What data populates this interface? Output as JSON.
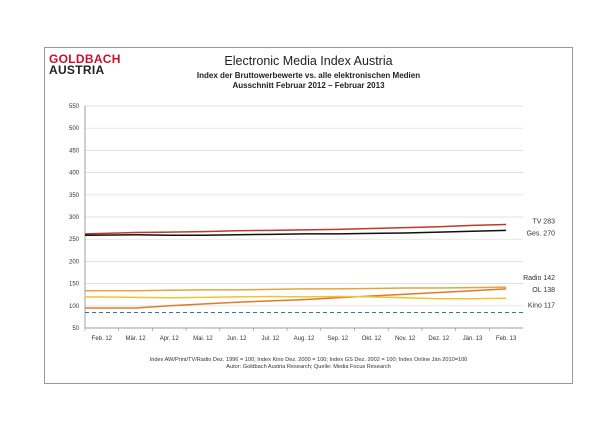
{
  "logo": {
    "line1": "GOLDBACH",
    "line2": "AUSTRIA"
  },
  "colors": {
    "brand": "#c8102e",
    "frame": "#9a9a9a"
  },
  "chart_data": {
    "type": "line",
    "title": "Electronic Media Index Austria",
    "subtitle": "Index der Bruttowerbewerte vs. alle elektronischen Medien",
    "subtitle2": "Ausschnitt Februar 2012 –  Februar 2013",
    "xlabel": "",
    "ylabel": "",
    "ylim": [
      50,
      550
    ],
    "yticks": [
      50,
      100,
      150,
      200,
      250,
      300,
      350,
      400,
      450,
      500,
      550
    ],
    "categories": [
      "Feb. 12",
      "Mär. 12",
      "Apr. 12",
      "Mai. 12",
      "Jun. 12",
      "Jul. 12",
      "Aug. 12",
      "Sep. 12",
      "Okt. 12",
      "Nov. 12",
      "Dez. 12",
      "Jän. 13",
      "Feb. 13"
    ],
    "grid": true,
    "series": [
      {
        "name": "TV",
        "label": "TV  283",
        "color": "#c0392b",
        "values": [
          262,
          265,
          266,
          267,
          269,
          270,
          271,
          272,
          274,
          276,
          278,
          281,
          283
        ]
      },
      {
        "name": "Ges.",
        "label": "Ges. 270",
        "color": "#111111",
        "values": [
          259,
          260,
          259,
          259,
          260,
          261,
          262,
          262,
          263,
          264,
          266,
          268,
          270
        ]
      },
      {
        "name": "Radio",
        "label": "Radio 142",
        "color": "#e8a33d",
        "values": [
          134,
          134,
          135,
          136,
          136,
          137,
          138,
          138,
          139,
          140,
          140,
          141,
          142
        ]
      },
      {
        "name": "OL",
        "label": "OL 138",
        "color": "#e07a28",
        "values": [
          95,
          95,
          100,
          104,
          108,
          111,
          114,
          118,
          122,
          126,
          130,
          134,
          138
        ]
      },
      {
        "name": "Kino",
        "label": "Kino 117",
        "color": "#f2c230",
        "values": [
          120,
          119,
          118,
          119,
          120,
          121,
          120,
          121,
          120,
          118,
          116,
          116,
          117
        ]
      },
      {
        "name": "Baseline",
        "label": "",
        "color": "#2f6fb5",
        "dashed": true,
        "values": [
          85,
          85,
          85,
          85,
          85,
          85,
          85,
          85,
          85,
          85,
          85,
          85,
          85
        ]
      }
    ],
    "footnotes": [
      "Index AW/Print/TV/Radio Dez. 1996 = 100; Index Kino Dez. 2000 = 100; Index GS Dez. 2002 = 100; Index Online Jän 2010=100",
      "Autor: Goldbach Austria Research; Quelle: Media Focus Research"
    ]
  }
}
